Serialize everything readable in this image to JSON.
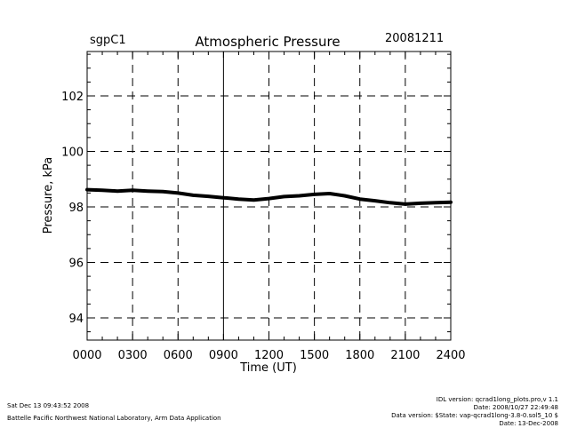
{
  "header": {
    "site": "sgpC1",
    "date": "20081211"
  },
  "footer": {
    "left_line1": "Sat Dec 13 09:43:52 2008",
    "left_line2": "Battelle Pacific Northwest National Laboratory, Arm Data Application",
    "right_line1": "IDL version: qcrad1long_plots.pro,v 1.1",
    "right_line2": "Date: 2008/10/27 22:49:48",
    "right_line3": "Data version: $State: vap-qcrad1long-3.8-0.sol5_10 $",
    "right_line4": "Date: 13-Dec-2008"
  },
  "colors": {
    "background": "#ffffff",
    "axis": "#000000",
    "series": "#000000"
  },
  "chart_data": {
    "type": "line",
    "title": "Atmospheric Pressure",
    "xlabel": "Time (UT)",
    "ylabel": "Pressure, kPa",
    "xlim": [
      0,
      2400
    ],
    "ylim": [
      93.2,
      103.6
    ],
    "x_ticks": [
      {
        "value": 0,
        "label": "0000"
      },
      {
        "value": 300,
        "label": "0300"
      },
      {
        "value": 600,
        "label": "0600"
      },
      {
        "value": 900,
        "label": "0900"
      },
      {
        "value": 1200,
        "label": "1200"
      },
      {
        "value": 1500,
        "label": "1500"
      },
      {
        "value": 1800,
        "label": "1800"
      },
      {
        "value": 2100,
        "label": "2100"
      },
      {
        "value": 2400,
        "label": "2400"
      }
    ],
    "y_ticks": [
      {
        "value": 94,
        "label": "94"
      },
      {
        "value": 96,
        "label": "96"
      },
      {
        "value": 98,
        "label": "98"
      },
      {
        "value": 100,
        "label": "100"
      },
      {
        "value": 102,
        "label": "102"
      }
    ],
    "grid": true,
    "series": [
      {
        "x": [
          0,
          100,
          200,
          300,
          400,
          500,
          600,
          700,
          800,
          900,
          1000,
          1100,
          1200,
          1300,
          1400,
          1500,
          1600,
          1700,
          1800,
          1900,
          2000,
          2100,
          2200,
          2300,
          2400
        ],
        "y": [
          98.62,
          98.6,
          98.57,
          98.6,
          98.57,
          98.55,
          98.5,
          98.42,
          98.38,
          98.33,
          98.28,
          98.25,
          98.3,
          98.37,
          98.4,
          98.45,
          98.48,
          98.4,
          98.28,
          98.22,
          98.15,
          98.1,
          98.13,
          98.15,
          98.17
        ]
      }
    ]
  }
}
